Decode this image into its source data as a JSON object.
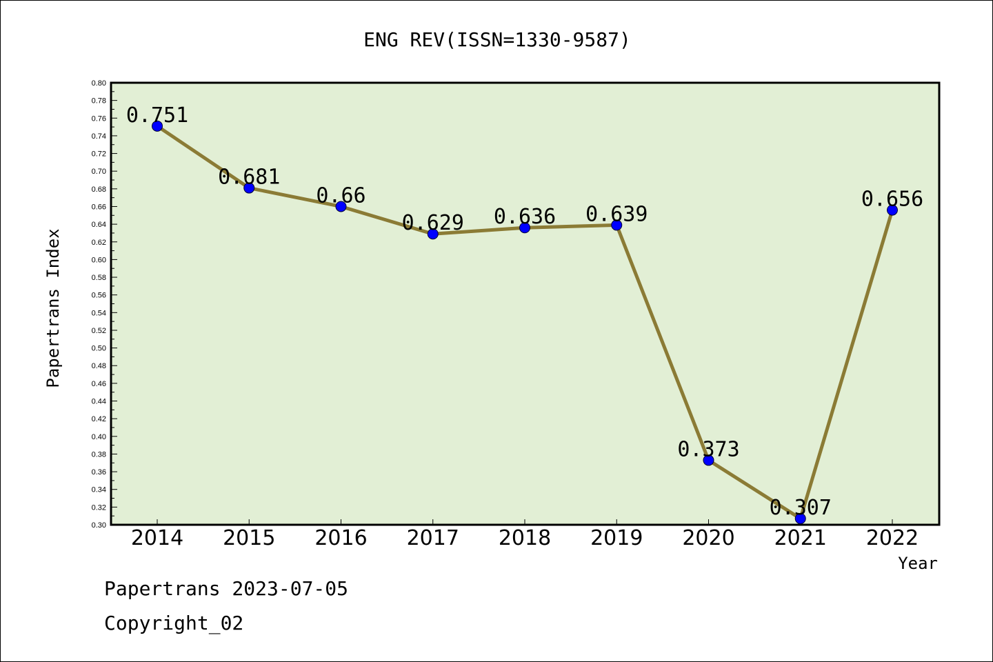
{
  "chart_data": {
    "type": "line",
    "title": "ENG REV(ISSN=1330-9587)",
    "xlabel": "Year",
    "ylabel": "Papertrans Index",
    "categories": [
      "2014",
      "2015",
      "2016",
      "2017",
      "2018",
      "2019",
      "2020",
      "2021",
      "2022"
    ],
    "series": [
      {
        "values": [
          0.751,
          0.681,
          0.66,
          0.629,
          0.636,
          0.639,
          0.373,
          0.307,
          0.656
        ],
        "labels": [
          "0.751",
          "0.681",
          "0.66",
          "0.629",
          "0.636",
          "0.639",
          "0.373",
          "0.307",
          "0.656"
        ],
        "line_color": "#8b7b35",
        "marker_color": "#0000ff"
      }
    ],
    "ylim": [
      0.3,
      0.8
    ],
    "ytick_step": 0.02,
    "ytick_labels": [
      "0.30",
      "0.32",
      "0.34",
      "0.36",
      "0.38",
      "0.40",
      "0.42",
      "0.44",
      "0.46",
      "0.48",
      "0.50",
      "0.52",
      "0.54",
      "0.56",
      "0.58",
      "0.60",
      "0.62",
      "0.64",
      "0.66",
      "0.68",
      "0.70",
      "0.72",
      "0.74",
      "0.76",
      "0.78",
      "0.80"
    ],
    "plot_background": "#e2efd5",
    "grid": false,
    "legend": "none"
  },
  "footer": {
    "line1": "Papertrans 2023-07-05",
    "line2": "Copyright_02"
  }
}
